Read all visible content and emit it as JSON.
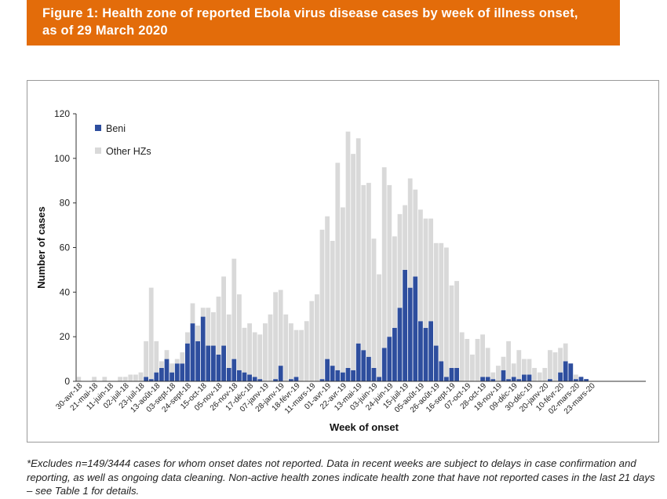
{
  "header": {
    "title_line1": "Figure 1: Health zone of reported Ebola virus disease cases by week of illness onset,",
    "title_line2": "as of 29 March 2020",
    "banner_color": "#E36C0A"
  },
  "footnote": "*Excludes n=149/3444 cases for whom onset dates not reported. Data in recent weeks are subject to delays in case confirmation and reporting, as well as ongoing data cleaning. Non-active health zones indicate health zone that have not reported cases in the last 21 days – see Table 1 for details.",
  "chart_data": {
    "type": "bar",
    "stacked": true,
    "xlabel": "Week of onset",
    "ylabel": "Number of cases",
    "ylim": [
      0,
      120
    ],
    "yticks": [
      0,
      20,
      40,
      60,
      80,
      100,
      120
    ],
    "grid": false,
    "legend_position": "top-left",
    "tick_labels": [
      "30-avr-18",
      "21-mai-18",
      "11-juin-18",
      "02-juil-18",
      "23-juil-18",
      "13-août-18",
      "03-sept-18",
      "24-sept-18",
      "15-oct-18",
      "05-nov-18",
      "26-nov-18",
      "17-déc-18",
      "07-janv-19",
      "28-janv-19",
      "18-févr-19",
      "11-mars-19",
      "01-avr-19",
      "22-avr-19",
      "13-mai-19",
      "03-juin-19",
      "24-juin-19",
      "15-juil-19",
      "05-août-19",
      "26-août-19",
      "16-sept-19",
      "07-oct-19",
      "28-oct-19",
      "18-nov-19",
      "09-déc-19",
      "30-déc-19",
      "20-janv-20",
      "10-févr-20",
      "02-mars-20",
      "23-mars-20"
    ],
    "series": [
      {
        "name": "Beni",
        "color": "#2E4E9E",
        "values": [
          0,
          0,
          0,
          0,
          0,
          0,
          0,
          0,
          0,
          0,
          0,
          0,
          0,
          2,
          1,
          4,
          6,
          10,
          4,
          8,
          8,
          17,
          26,
          18,
          29,
          16,
          16,
          12,
          16,
          6,
          10,
          5,
          4,
          3,
          2,
          1,
          0,
          0,
          1,
          7,
          0,
          1,
          2,
          0,
          0,
          0,
          0,
          1,
          10,
          7,
          5,
          4,
          6,
          5,
          17,
          14,
          11,
          6,
          2,
          15,
          20,
          24,
          33,
          50,
          42,
          47,
          27,
          24,
          27,
          16,
          9,
          2,
          6,
          6,
          0,
          0,
          0,
          0,
          2,
          2,
          1,
          0,
          5,
          1,
          2,
          1,
          3,
          3,
          0,
          0,
          0,
          1,
          0,
          4,
          9,
          8,
          1,
          2,
          1,
          0,
          0,
          0,
          0,
          0,
          0,
          0,
          0,
          0,
          0,
          0
        ]
      },
      {
        "name": "Other HZs",
        "color": "#D9D9D9",
        "values": [
          2,
          0,
          0,
          2,
          0,
          2,
          0,
          0,
          2,
          2,
          3,
          3,
          4,
          16,
          41,
          14,
          3,
          4,
          4,
          2,
          5,
          5,
          9,
          7,
          4,
          17,
          15,
          26,
          31,
          24,
          45,
          34,
          20,
          23,
          20,
          20,
          26,
          30,
          39,
          34,
          30,
          25,
          21,
          23,
          27,
          36,
          39,
          67,
          64,
          56,
          93,
          74,
          106,
          97,
          92,
          74,
          78,
          58,
          46,
          81,
          68,
          41,
          42,
          29,
          49,
          39,
          50,
          49,
          46,
          46,
          53,
          58,
          37,
          39,
          22,
          19,
          12,
          19,
          19,
          13,
          3,
          7,
          6,
          17,
          6,
          13,
          7,
          7,
          6,
          4,
          6,
          13,
          13,
          11,
          8,
          0,
          2,
          0,
          0,
          0,
          0,
          0,
          0,
          0,
          0,
          0,
          0,
          0,
          0,
          0
        ]
      }
    ]
  }
}
